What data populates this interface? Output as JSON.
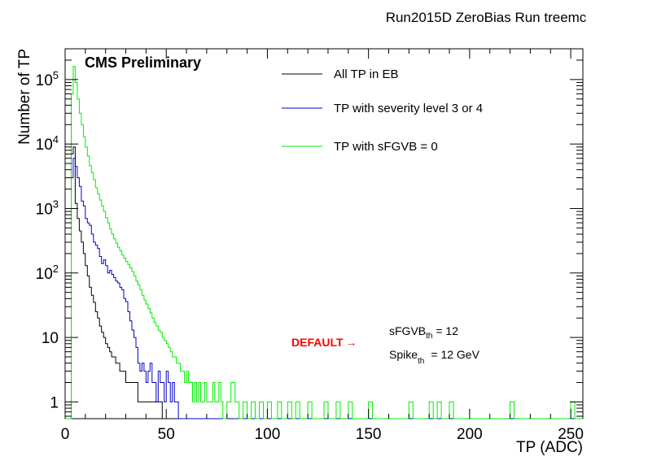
{
  "chart_data": {
    "type": "line",
    "title": "Run2015D ZeroBias Run treemc",
    "xlabel": "TP (ADC)",
    "ylabel": "Number of TP",
    "xlim": [
      0,
      256
    ],
    "ylim": [
      0.55,
      300000
    ],
    "y_scale": "log",
    "x_ticks": [
      "0",
      "50",
      "100",
      "150",
      "200",
      "250"
    ],
    "y_ticks": [
      {
        "base": "1",
        "exp": ""
      },
      {
        "base": "10",
        "exp": ""
      },
      {
        "base": "10",
        "exp": "2"
      },
      {
        "base": "10",
        "exp": "3"
      },
      {
        "base": "10",
        "exp": "4"
      },
      {
        "base": "10",
        "exp": "5"
      }
    ],
    "grid": false,
    "legend_position": "top-right",
    "series": [
      {
        "name": "All TP in EB",
        "color": "#000000",
        "style": "step",
        "points": [
          [
            0,
            0.55
          ],
          [
            3,
            0.55
          ],
          [
            3,
            7000
          ],
          [
            4,
            9000
          ],
          [
            5,
            1200
          ],
          [
            6,
            700
          ],
          [
            7,
            450
          ],
          [
            8,
            300
          ],
          [
            9,
            200
          ],
          [
            10,
            130
          ],
          [
            11,
            90
          ],
          [
            12,
            60
          ],
          [
            13,
            45
          ],
          [
            14,
            35
          ],
          [
            15,
            25
          ],
          [
            16,
            20
          ],
          [
            17,
            15
          ],
          [
            18,
            12
          ],
          [
            19,
            10
          ],
          [
            20,
            8
          ],
          [
            21,
            7
          ],
          [
            22,
            6
          ],
          [
            23,
            5
          ],
          [
            24,
            5
          ],
          [
            25,
            4
          ],
          [
            26,
            4
          ],
          [
            27,
            3
          ],
          [
            28,
            3
          ],
          [
            29,
            3
          ],
          [
            30,
            2
          ],
          [
            32,
            2
          ],
          [
            34,
            2
          ],
          [
            36,
            1
          ],
          [
            40,
            1
          ],
          [
            45,
            1
          ],
          [
            48,
            0.55
          ],
          [
            256,
            0.55
          ]
        ]
      },
      {
        "name": "TP with severity level 3 or 4",
        "color": "#0000cc",
        "style": "step",
        "points": [
          [
            0,
            0.55
          ],
          [
            3,
            0.55
          ],
          [
            3,
            3000
          ],
          [
            4,
            6000
          ],
          [
            5,
            4500
          ],
          [
            6,
            3000
          ],
          [
            7,
            2200
          ],
          [
            8,
            1300
          ],
          [
            9,
            1100
          ],
          [
            10,
            700
          ],
          [
            11,
            600
          ],
          [
            12,
            550
          ],
          [
            13,
            400
          ],
          [
            14,
            300
          ],
          [
            15,
            270
          ],
          [
            16,
            240
          ],
          [
            17,
            180
          ],
          [
            18,
            140
          ],
          [
            19,
            160
          ],
          [
            20,
            130
          ],
          [
            21,
            100
          ],
          [
            22,
            110
          ],
          [
            23,
            95
          ],
          [
            24,
            85
          ],
          [
            25,
            75
          ],
          [
            26,
            70
          ],
          [
            27,
            60
          ],
          [
            28,
            55
          ],
          [
            29,
            40
          ],
          [
            30,
            36
          ],
          [
            31,
            25
          ],
          [
            32,
            18
          ],
          [
            33,
            13
          ],
          [
            34,
            10
          ],
          [
            35,
            7
          ],
          [
            36,
            4
          ],
          [
            37,
            3
          ],
          [
            38,
            4
          ],
          [
            39,
            3
          ],
          [
            40,
            2
          ],
          [
            41,
            3
          ],
          [
            42,
            4
          ],
          [
            43,
            2
          ],
          [
            44,
            2
          ],
          [
            45,
            1
          ],
          [
            46,
            3
          ],
          [
            47,
            2
          ],
          [
            48,
            2
          ],
          [
            49,
            1
          ],
          [
            50,
            3
          ],
          [
            51,
            2
          ],
          [
            52,
            1
          ],
          [
            53,
            2
          ],
          [
            54,
            1
          ],
          [
            55,
            1
          ],
          [
            56,
            0.55
          ],
          [
            256,
            0.55
          ]
        ]
      },
      {
        "name": "TP with sFGVB = 0",
        "color": "#00ee00",
        "style": "step",
        "points": [
          [
            0,
            0.55
          ],
          [
            3,
            0.55
          ],
          [
            3,
            60000
          ],
          [
            4,
            160000
          ],
          [
            5,
            90000
          ],
          [
            6,
            50000
          ],
          [
            7,
            30000
          ],
          [
            8,
            20000
          ],
          [
            9,
            13000
          ],
          [
            10,
            9000
          ],
          [
            11,
            6500
          ],
          [
            12,
            4600
          ],
          [
            13,
            3600
          ],
          [
            14,
            2800
          ],
          [
            15,
            2100
          ],
          [
            16,
            1700
          ],
          [
            17,
            1350
          ],
          [
            18,
            1100
          ],
          [
            19,
            900
          ],
          [
            20,
            720
          ],
          [
            21,
            600
          ],
          [
            22,
            480
          ],
          [
            23,
            400
          ],
          [
            24,
            340
          ],
          [
            25,
            290
          ],
          [
            26,
            250
          ],
          [
            27,
            220
          ],
          [
            28,
            190
          ],
          [
            29,
            170
          ],
          [
            30,
            150
          ],
          [
            31,
            135
          ],
          [
            32,
            120
          ],
          [
            33,
            105
          ],
          [
            34,
            90
          ],
          [
            35,
            75
          ],
          [
            36,
            65
          ],
          [
            37,
            55
          ],
          [
            38,
            45
          ],
          [
            39,
            38
          ],
          [
            40,
            33
          ],
          [
            41,
            28
          ],
          [
            42,
            24
          ],
          [
            43,
            20
          ],
          [
            44,
            17
          ],
          [
            45,
            15
          ],
          [
            46,
            13
          ],
          [
            47,
            12
          ],
          [
            48,
            10
          ],
          [
            49,
            9
          ],
          [
            50,
            8
          ],
          [
            51,
            7
          ],
          [
            52,
            6
          ],
          [
            53,
            5
          ],
          [
            54,
            5
          ],
          [
            55,
            4
          ],
          [
            56,
            4
          ],
          [
            57,
            3
          ],
          [
            58,
            3
          ],
          [
            59,
            2
          ],
          [
            60,
            3
          ],
          [
            61,
            2
          ],
          [
            62,
            2
          ],
          [
            63,
            1
          ],
          [
            64,
            2
          ],
          [
            65,
            1
          ],
          [
            66,
            2
          ],
          [
            67,
            1
          ],
          [
            68,
            1
          ],
          [
            69,
            2
          ],
          [
            70,
            1
          ],
          [
            71,
            1
          ],
          [
            72,
            1
          ],
          [
            73,
            2
          ],
          [
            74,
            1
          ],
          [
            75,
            1
          ],
          [
            76,
            2
          ],
          [
            77,
            1
          ],
          [
            78,
            0.55
          ],
          [
            80,
            1
          ],
          [
            82,
            2
          ],
          [
            84,
            1
          ],
          [
            86,
            0.55
          ],
          [
            88,
            1
          ],
          [
            90,
            0.55
          ],
          [
            92,
            1
          ],
          [
            94,
            0.55
          ],
          [
            96,
            1
          ],
          [
            98,
            0.55
          ],
          [
            100,
            1
          ],
          [
            102,
            0.55
          ],
          [
            105,
            1
          ],
          [
            107,
            0.55
          ],
          [
            110,
            1
          ],
          [
            112,
            0.55
          ],
          [
            114,
            1
          ],
          [
            116,
            0.55
          ],
          [
            120,
            1
          ],
          [
            122,
            0.55
          ],
          [
            128,
            1
          ],
          [
            130,
            0.55
          ],
          [
            134,
            1
          ],
          [
            136,
            0.55
          ],
          [
            140,
            1
          ],
          [
            142,
            0.55
          ],
          [
            150,
            1
          ],
          [
            152,
            0.55
          ],
          [
            170,
            1
          ],
          [
            172,
            0.55
          ],
          [
            180,
            1
          ],
          [
            182,
            0.55
          ],
          [
            184,
            1
          ],
          [
            186,
            0.55
          ],
          [
            190,
            1
          ],
          [
            192,
            0.55
          ],
          [
            220,
            1
          ],
          [
            222,
            0.55
          ],
          [
            250,
            1
          ],
          [
            252,
            0.55
          ],
          [
            256,
            0.55
          ]
        ]
      }
    ],
    "legend": [
      {
        "label": "All TP in EB",
        "color": "#000000"
      },
      {
        "label": "TP with severity level 3 or 4",
        "color": "#0000cc"
      },
      {
        "label": "TP with sFGVB = 0",
        "color": "#00ee00"
      }
    ],
    "annotations": {
      "cms": "CMS Preliminary",
      "default_label": "DEFAULT",
      "default_arrow": "→",
      "default_color": "#ff0000",
      "sfgvb_main": "sFGVB",
      "sfgvb_sub": "th",
      "sfgvb_value": " = 12",
      "spike_main": "Spike",
      "spike_sub": "th",
      "spike_value": "= 12 GeV"
    }
  }
}
